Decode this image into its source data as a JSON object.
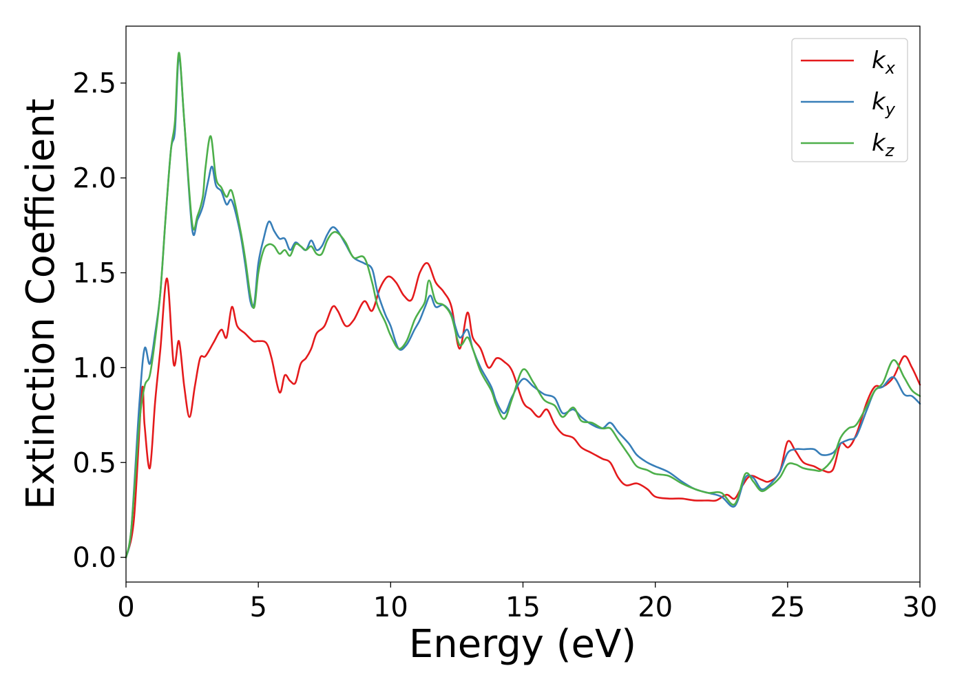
{
  "chart_data": {
    "type": "line",
    "title": "",
    "xlabel": "Energy (eV)",
    "ylabel": "Extinction Coefficient",
    "xlim": [
      0,
      30
    ],
    "ylim": [
      -0.13,
      2.8
    ],
    "xticks": [
      0,
      5,
      10,
      15,
      20,
      25,
      30
    ],
    "xtick_labels": [
      "0",
      "5",
      "10",
      "15",
      "20",
      "25",
      "30"
    ],
    "yticks": [
      0.0,
      0.5,
      1.0,
      1.5,
      2.0,
      2.5
    ],
    "ytick_labels": [
      "0.0",
      "0.5",
      "1.0",
      "1.5",
      "2.0",
      "2.5"
    ],
    "grid": false,
    "legend_position": "top-right",
    "series": [
      {
        "name": "k_x",
        "label_base": "k",
        "label_sub": "x",
        "color": "#e41a1c",
        "points": [
          [
            0,
            0
          ],
          [
            0.3,
            0.2
          ],
          [
            0.6,
            0.88
          ],
          [
            0.7,
            0.7
          ],
          [
            0.9,
            0.47
          ],
          [
            1.1,
            0.82
          ],
          [
            1.3,
            1.1
          ],
          [
            1.55,
            1.47
          ],
          [
            1.8,
            1.02
          ],
          [
            2.0,
            1.14
          ],
          [
            2.2,
            0.9
          ],
          [
            2.4,
            0.74
          ],
          [
            2.6,
            0.9
          ],
          [
            2.8,
            1.05
          ],
          [
            3.0,
            1.06
          ],
          [
            3.3,
            1.13
          ],
          [
            3.6,
            1.2
          ],
          [
            3.8,
            1.16
          ],
          [
            4.0,
            1.32
          ],
          [
            4.2,
            1.22
          ],
          [
            4.5,
            1.18
          ],
          [
            4.8,
            1.14
          ],
          [
            5.0,
            1.14
          ],
          [
            5.3,
            1.13
          ],
          [
            5.5,
            1.05
          ],
          [
            5.8,
            0.87
          ],
          [
            6.0,
            0.96
          ],
          [
            6.2,
            0.93
          ],
          [
            6.4,
            0.92
          ],
          [
            6.6,
            1.02
          ],
          [
            6.8,
            1.05
          ],
          [
            7.0,
            1.1
          ],
          [
            7.2,
            1.18
          ],
          [
            7.5,
            1.22
          ],
          [
            7.8,
            1.32
          ],
          [
            8.0,
            1.3
          ],
          [
            8.3,
            1.22
          ],
          [
            8.6,
            1.25
          ],
          [
            9.0,
            1.35
          ],
          [
            9.3,
            1.3
          ],
          [
            9.6,
            1.42
          ],
          [
            9.9,
            1.48
          ],
          [
            10.2,
            1.45
          ],
          [
            10.5,
            1.38
          ],
          [
            10.8,
            1.36
          ],
          [
            11.1,
            1.5
          ],
          [
            11.4,
            1.55
          ],
          [
            11.7,
            1.45
          ],
          [
            12.0,
            1.4
          ],
          [
            12.3,
            1.32
          ],
          [
            12.6,
            1.1
          ],
          [
            12.9,
            1.29
          ],
          [
            13.1,
            1.16
          ],
          [
            13.4,
            1.1
          ],
          [
            13.7,
            1.0
          ],
          [
            14.0,
            1.05
          ],
          [
            14.3,
            1.03
          ],
          [
            14.6,
            0.98
          ],
          [
            15.0,
            0.82
          ],
          [
            15.3,
            0.78
          ],
          [
            15.6,
            0.74
          ],
          [
            15.9,
            0.78
          ],
          [
            16.2,
            0.7
          ],
          [
            16.5,
            0.65
          ],
          [
            16.9,
            0.63
          ],
          [
            17.2,
            0.58
          ],
          [
            17.6,
            0.55
          ],
          [
            18.0,
            0.52
          ],
          [
            18.3,
            0.5
          ],
          [
            18.6,
            0.42
          ],
          [
            18.9,
            0.38
          ],
          [
            19.3,
            0.39
          ],
          [
            19.7,
            0.36
          ],
          [
            20.0,
            0.32
          ],
          [
            20.5,
            0.31
          ],
          [
            21.0,
            0.31
          ],
          [
            21.5,
            0.3
          ],
          [
            22.0,
            0.3
          ],
          [
            22.3,
            0.3
          ],
          [
            22.7,
            0.33
          ],
          [
            23.0,
            0.31
          ],
          [
            23.3,
            0.38
          ],
          [
            23.6,
            0.43
          ],
          [
            24.0,
            0.41
          ],
          [
            24.3,
            0.4
          ],
          [
            24.7,
            0.45
          ],
          [
            25.0,
            0.61
          ],
          [
            25.3,
            0.56
          ],
          [
            25.6,
            0.5
          ],
          [
            26.0,
            0.48
          ],
          [
            26.3,
            0.46
          ],
          [
            26.7,
            0.46
          ],
          [
            27.0,
            0.6
          ],
          [
            27.3,
            0.58
          ],
          [
            27.6,
            0.65
          ],
          [
            28.0,
            0.82
          ],
          [
            28.3,
            0.9
          ],
          [
            28.6,
            0.9
          ],
          [
            29.0,
            0.95
          ],
          [
            29.4,
            1.06
          ],
          [
            29.7,
            1.0
          ],
          [
            30.0,
            0.91
          ]
        ]
      },
      {
        "name": "k_y",
        "label_base": "k",
        "label_sub": "y",
        "color": "#377eb8",
        "points": [
          [
            0,
            0
          ],
          [
            0.2,
            0.15
          ],
          [
            0.5,
            0.8
          ],
          [
            0.7,
            1.1
          ],
          [
            0.9,
            1.02
          ],
          [
            1.1,
            1.18
          ],
          [
            1.3,
            1.4
          ],
          [
            1.5,
            1.8
          ],
          [
            1.7,
            2.15
          ],
          [
            1.85,
            2.25
          ],
          [
            2.0,
            2.64
          ],
          [
            2.2,
            2.3
          ],
          [
            2.5,
            1.73
          ],
          [
            2.7,
            1.78
          ],
          [
            2.9,
            1.85
          ],
          [
            3.1,
            1.98
          ],
          [
            3.25,
            2.06
          ],
          [
            3.4,
            1.96
          ],
          [
            3.6,
            1.93
          ],
          [
            3.8,
            1.86
          ],
          [
            4.0,
            1.88
          ],
          [
            4.3,
            1.72
          ],
          [
            4.5,
            1.55
          ],
          [
            4.7,
            1.35
          ],
          [
            4.85,
            1.34
          ],
          [
            5.0,
            1.55
          ],
          [
            5.2,
            1.68
          ],
          [
            5.4,
            1.77
          ],
          [
            5.6,
            1.72
          ],
          [
            5.8,
            1.68
          ],
          [
            6.0,
            1.68
          ],
          [
            6.2,
            1.62
          ],
          [
            6.4,
            1.66
          ],
          [
            6.6,
            1.64
          ],
          [
            6.8,
            1.62
          ],
          [
            7.0,
            1.67
          ],
          [
            7.2,
            1.62
          ],
          [
            7.4,
            1.64
          ],
          [
            7.6,
            1.7
          ],
          [
            7.8,
            1.74
          ],
          [
            8.0,
            1.72
          ],
          [
            8.3,
            1.65
          ],
          [
            8.6,
            1.58
          ],
          [
            9.0,
            1.55
          ],
          [
            9.3,
            1.52
          ],
          [
            9.5,
            1.4
          ],
          [
            9.8,
            1.28
          ],
          [
            10.0,
            1.22
          ],
          [
            10.3,
            1.1
          ],
          [
            10.6,
            1.12
          ],
          [
            10.9,
            1.2
          ],
          [
            11.1,
            1.25
          ],
          [
            11.3,
            1.32
          ],
          [
            11.5,
            1.38
          ],
          [
            11.7,
            1.32
          ],
          [
            12.0,
            1.33
          ],
          [
            12.3,
            1.28
          ],
          [
            12.6,
            1.16
          ],
          [
            12.9,
            1.2
          ],
          [
            13.1,
            1.1
          ],
          [
            13.4,
            1.0
          ],
          [
            13.8,
            0.9
          ],
          [
            14.0,
            0.82
          ],
          [
            14.3,
            0.76
          ],
          [
            14.6,
            0.85
          ],
          [
            15.0,
            0.94
          ],
          [
            15.4,
            0.9
          ],
          [
            15.8,
            0.86
          ],
          [
            16.2,
            0.84
          ],
          [
            16.5,
            0.76
          ],
          [
            16.9,
            0.78
          ],
          [
            17.2,
            0.74
          ],
          [
            17.6,
            0.7
          ],
          [
            18.0,
            0.68
          ],
          [
            18.3,
            0.71
          ],
          [
            18.6,
            0.66
          ],
          [
            19.0,
            0.6
          ],
          [
            19.3,
            0.54
          ],
          [
            19.7,
            0.5
          ],
          [
            20.0,
            0.48
          ],
          [
            20.5,
            0.45
          ],
          [
            21.0,
            0.4
          ],
          [
            21.5,
            0.36
          ],
          [
            22.0,
            0.34
          ],
          [
            22.5,
            0.32
          ],
          [
            23.0,
            0.27
          ],
          [
            23.4,
            0.42
          ],
          [
            23.7,
            0.42
          ],
          [
            24.0,
            0.36
          ],
          [
            24.3,
            0.38
          ],
          [
            24.7,
            0.45
          ],
          [
            25.0,
            0.55
          ],
          [
            25.3,
            0.57
          ],
          [
            25.6,
            0.57
          ],
          [
            26.0,
            0.57
          ],
          [
            26.3,
            0.54
          ],
          [
            26.7,
            0.55
          ],
          [
            27.0,
            0.6
          ],
          [
            27.3,
            0.62
          ],
          [
            27.6,
            0.64
          ],
          [
            28.0,
            0.78
          ],
          [
            28.3,
            0.88
          ],
          [
            28.6,
            0.9
          ],
          [
            29.0,
            0.95
          ],
          [
            29.4,
            0.86
          ],
          [
            29.7,
            0.85
          ],
          [
            30.0,
            0.81
          ]
        ]
      },
      {
        "name": "k_z",
        "label_base": "k",
        "label_sub": "z",
        "color": "#4daf4a",
        "points": [
          [
            0,
            0
          ],
          [
            0.2,
            0.15
          ],
          [
            0.5,
            0.7
          ],
          [
            0.7,
            0.9
          ],
          [
            0.9,
            0.96
          ],
          [
            1.1,
            1.15
          ],
          [
            1.3,
            1.4
          ],
          [
            1.5,
            1.8
          ],
          [
            1.7,
            2.15
          ],
          [
            1.85,
            2.3
          ],
          [
            2.0,
            2.66
          ],
          [
            2.2,
            2.3
          ],
          [
            2.5,
            1.76
          ],
          [
            2.7,
            1.8
          ],
          [
            2.9,
            1.9
          ],
          [
            3.0,
            2.05
          ],
          [
            3.2,
            2.22
          ],
          [
            3.4,
            2.0
          ],
          [
            3.6,
            1.95
          ],
          [
            3.8,
            1.9
          ],
          [
            4.0,
            1.93
          ],
          [
            4.3,
            1.74
          ],
          [
            4.5,
            1.58
          ],
          [
            4.7,
            1.38
          ],
          [
            4.85,
            1.32
          ],
          [
            5.0,
            1.5
          ],
          [
            5.2,
            1.62
          ],
          [
            5.4,
            1.65
          ],
          [
            5.6,
            1.64
          ],
          [
            5.8,
            1.6
          ],
          [
            6.0,
            1.62
          ],
          [
            6.2,
            1.59
          ],
          [
            6.4,
            1.65
          ],
          [
            6.6,
            1.64
          ],
          [
            6.8,
            1.62
          ],
          [
            7.0,
            1.64
          ],
          [
            7.2,
            1.6
          ],
          [
            7.4,
            1.6
          ],
          [
            7.6,
            1.67
          ],
          [
            7.8,
            1.71
          ],
          [
            8.0,
            1.71
          ],
          [
            8.3,
            1.66
          ],
          [
            8.6,
            1.58
          ],
          [
            9.0,
            1.58
          ],
          [
            9.3,
            1.45
          ],
          [
            9.5,
            1.33
          ],
          [
            9.8,
            1.24
          ],
          [
            10.0,
            1.17
          ],
          [
            10.3,
            1.1
          ],
          [
            10.6,
            1.14
          ],
          [
            10.9,
            1.25
          ],
          [
            11.1,
            1.3
          ],
          [
            11.3,
            1.35
          ],
          [
            11.45,
            1.46
          ],
          [
            11.7,
            1.35
          ],
          [
            12.0,
            1.33
          ],
          [
            12.3,
            1.27
          ],
          [
            12.6,
            1.12
          ],
          [
            12.9,
            1.16
          ],
          [
            13.1,
            1.1
          ],
          [
            13.4,
            0.98
          ],
          [
            13.8,
            0.88
          ],
          [
            14.0,
            0.8
          ],
          [
            14.3,
            0.73
          ],
          [
            14.6,
            0.84
          ],
          [
            15.0,
            0.99
          ],
          [
            15.4,
            0.92
          ],
          [
            15.8,
            0.83
          ],
          [
            16.2,
            0.8
          ],
          [
            16.5,
            0.74
          ],
          [
            16.9,
            0.79
          ],
          [
            17.2,
            0.72
          ],
          [
            17.6,
            0.71
          ],
          [
            18.0,
            0.68
          ],
          [
            18.3,
            0.68
          ],
          [
            18.6,
            0.62
          ],
          [
            19.0,
            0.54
          ],
          [
            19.3,
            0.48
          ],
          [
            19.7,
            0.46
          ],
          [
            20.0,
            0.44
          ],
          [
            20.5,
            0.43
          ],
          [
            21.0,
            0.39
          ],
          [
            21.5,
            0.36
          ],
          [
            22.0,
            0.34
          ],
          [
            22.5,
            0.34
          ],
          [
            23.0,
            0.28
          ],
          [
            23.4,
            0.44
          ],
          [
            23.7,
            0.4
          ],
          [
            24.0,
            0.35
          ],
          [
            24.3,
            0.37
          ],
          [
            24.7,
            0.42
          ],
          [
            25.0,
            0.49
          ],
          [
            25.3,
            0.49
          ],
          [
            25.6,
            0.47
          ],
          [
            26.0,
            0.46
          ],
          [
            26.3,
            0.46
          ],
          [
            26.7,
            0.52
          ],
          [
            27.0,
            0.63
          ],
          [
            27.3,
            0.68
          ],
          [
            27.6,
            0.7
          ],
          [
            28.0,
            0.8
          ],
          [
            28.3,
            0.88
          ],
          [
            28.6,
            0.92
          ],
          [
            29.0,
            1.04
          ],
          [
            29.4,
            0.95
          ],
          [
            29.7,
            0.88
          ],
          [
            30.0,
            0.85
          ]
        ]
      }
    ]
  }
}
